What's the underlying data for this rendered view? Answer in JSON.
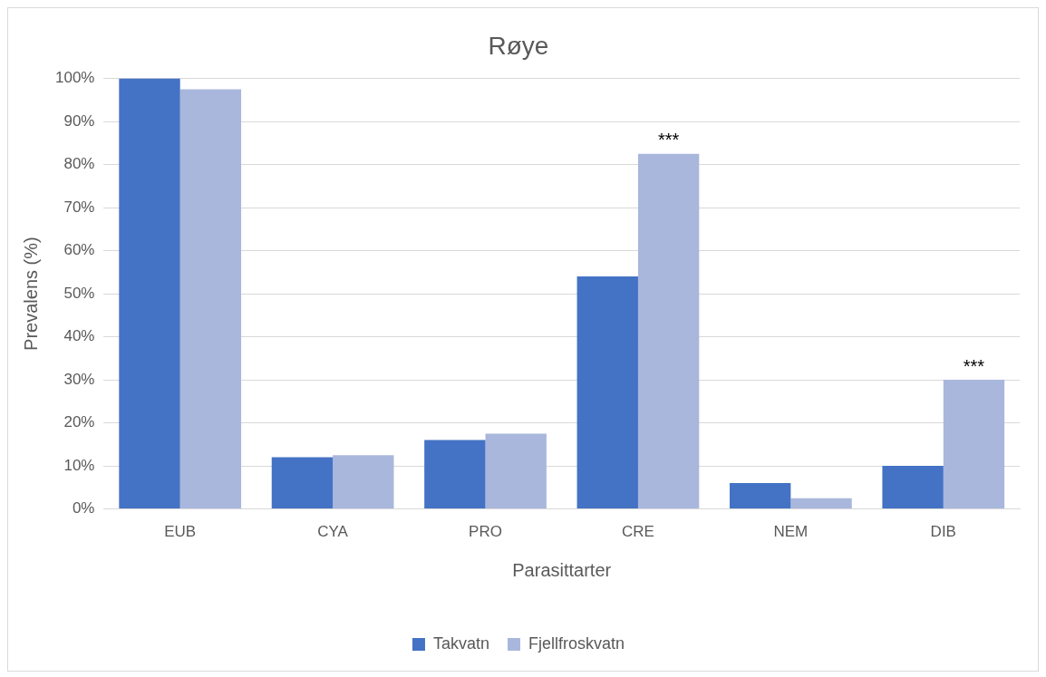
{
  "chart_data": {
    "type": "bar",
    "title": "Røye",
    "xlabel": "Parasittarter",
    "ylabel": "Prevalens (%)",
    "categories": [
      "EUB",
      "CYA",
      "PRO",
      "CRE",
      "NEM",
      "DIB"
    ],
    "series": [
      {
        "name": "Takvatn",
        "color": "#4472c4",
        "values": [
          100,
          12,
          16,
          54,
          6,
          10
        ]
      },
      {
        "name": "Fjellfroskvatn",
        "color": "#a9b7dc",
        "values": [
          97.5,
          12.5,
          17.5,
          82.5,
          2.5,
          30
        ]
      }
    ],
    "ylim": [
      0,
      100
    ],
    "yticks": [
      {
        "value": 0,
        "label": "0%"
      },
      {
        "value": 10,
        "label": "10%"
      },
      {
        "value": 20,
        "label": "20%"
      },
      {
        "value": 30,
        "label": "30%"
      },
      {
        "value": 40,
        "label": "40%"
      },
      {
        "value": 50,
        "label": "50%"
      },
      {
        "value": 60,
        "label": "60%"
      },
      {
        "value": 70,
        "label": "70%"
      },
      {
        "value": 80,
        "label": "80%"
      },
      {
        "value": 90,
        "label": "90%"
      },
      {
        "value": 100,
        "label": "100%"
      }
    ],
    "grid": "y",
    "legend": "bottom",
    "annotations": [
      {
        "text": "***",
        "x": "CRE",
        "y": 82.5
      },
      {
        "text": "***",
        "x": "DIB",
        "y": 30
      }
    ]
  }
}
